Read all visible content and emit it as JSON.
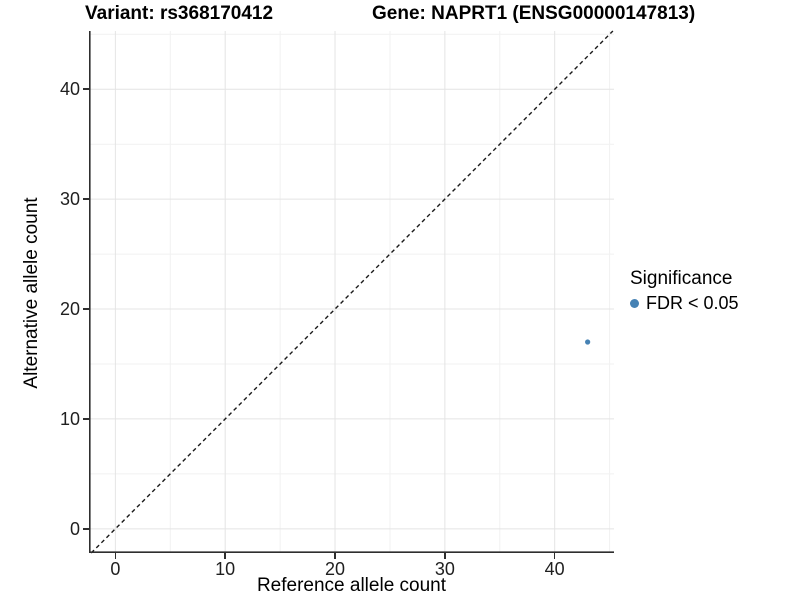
{
  "header": {
    "variant_title": "Variant: rs368170412",
    "gene_title": "Gene: NAPRT1 (ENSG00000147813)"
  },
  "chart_data": {
    "type": "scatter",
    "title": "Variant: rs368170412  Gene: NAPRT1 (ENSG00000147813)",
    "xlabel": "Reference allele count",
    "ylabel": "Alternative allele count",
    "xlim": [
      -2.4,
      45.4
    ],
    "ylim": [
      -2.2,
      45.3
    ],
    "xticks": [
      0,
      10,
      20,
      30,
      40
    ],
    "yticks": [
      0,
      10,
      20,
      30,
      40
    ],
    "xticks_minor": [
      5,
      15,
      25,
      35,
      45
    ],
    "yticks_minor": [
      5,
      15,
      25,
      35,
      45
    ],
    "grid": "major+minor",
    "points": [
      {
        "x": 43,
        "y": 17,
        "series": "FDR < 0.05"
      }
    ],
    "reference_line": {
      "type": "identity",
      "slope": 1,
      "intercept": 0,
      "style": "dashed"
    },
    "legend": {
      "title": "Significance",
      "position": "right",
      "items": [
        {
          "label": "FDR < 0.05",
          "color": "#4682B4"
        }
      ]
    },
    "colors": {
      "point": "#4682B4",
      "axis_line": "#2e2e2e",
      "tick_text": "#1f1f1f",
      "grid_major": "#e4e4e4",
      "grid_minor": "#f1f1f1",
      "reference_line": "#1a1a1a"
    }
  }
}
